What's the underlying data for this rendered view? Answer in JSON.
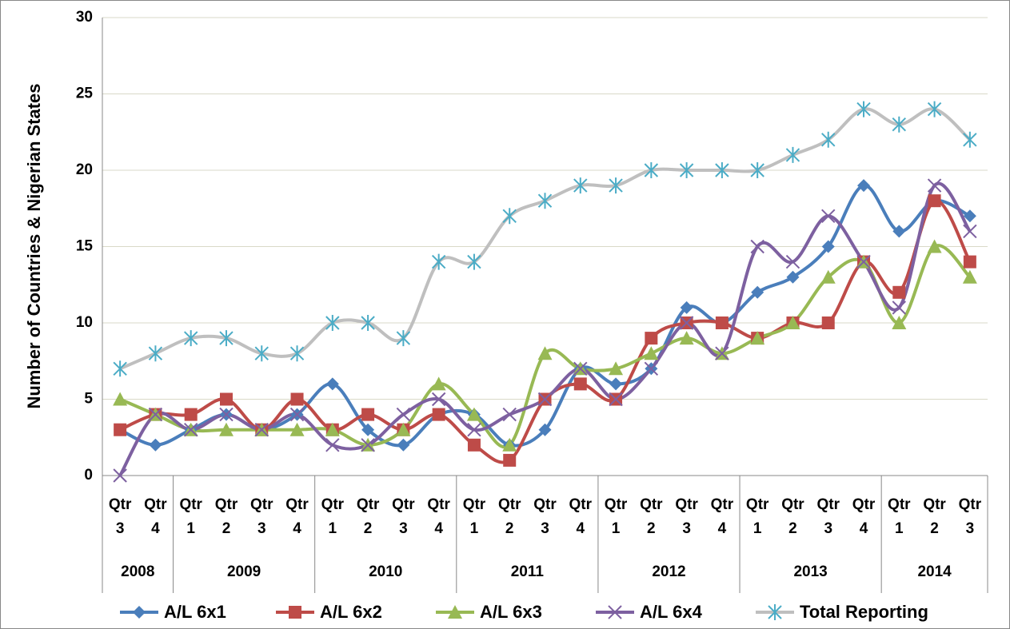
{
  "chart_data": {
    "type": "line",
    "y_axis_label": "Number of Countries & Nigerian States",
    "groups": [
      {
        "name": "2008",
        "categories": [
          "Qtr 3",
          "Qtr 4"
        ]
      },
      {
        "name": "2009",
        "categories": [
          "Qtr 1",
          "Qtr 2",
          "Qtr 3",
          "Qtr 4"
        ]
      },
      {
        "name": "2010",
        "categories": [
          "Qtr 1",
          "Qtr 2",
          "Qtr 3",
          "Qtr 4"
        ]
      },
      {
        "name": "2011",
        "categories": [
          "Qtr 1",
          "Qtr 2",
          "Qtr 3",
          "Qtr 4"
        ]
      },
      {
        "name": "2012",
        "categories": [
          "Qtr 1",
          "Qtr 2",
          "Qtr 3",
          "Qtr 4"
        ]
      },
      {
        "name": "2013",
        "categories": [
          "Qtr 1",
          "Qtr 2",
          "Qtr 3",
          "Qtr 4"
        ]
      },
      {
        "name": "2014",
        "categories": [
          "Qtr 1",
          "Qtr 2",
          "Qtr 3"
        ]
      }
    ],
    "series": [
      {
        "name": "A/L 6x1",
        "color": "#4a7ebb",
        "marker": "diamond",
        "values": [
          3,
          2,
          3,
          4,
          3,
          4,
          6,
          3,
          2,
          4,
          4,
          2,
          3,
          7,
          6,
          7,
          11,
          10,
          12,
          13,
          15,
          19,
          16,
          18,
          17
        ]
      },
      {
        "name": "A/L 6x2",
        "color": "#be4b48",
        "marker": "square",
        "values": [
          3,
          4,
          4,
          5,
          3,
          5,
          3,
          4,
          3,
          4,
          2,
          1,
          5,
          6,
          5,
          9,
          10,
          10,
          9,
          10,
          10,
          14,
          12,
          18,
          14
        ]
      },
      {
        "name": "A/L 6x3",
        "color": "#98b954",
        "marker": "triangle",
        "values": [
          5,
          4,
          3,
          3,
          3,
          3,
          3,
          2,
          3,
          6,
          4,
          2,
          8,
          7,
          7,
          8,
          9,
          8,
          9,
          10,
          13,
          14,
          10,
          15,
          13
        ]
      },
      {
        "name": "A/L 6x4",
        "color": "#7d60a0",
        "marker": "x",
        "values": [
          0,
          4,
          3,
          4,
          3,
          4,
          2,
          2,
          4,
          5,
          3,
          4,
          5,
          7,
          5,
          7,
          10,
          8,
          15,
          14,
          17,
          14,
          11,
          19,
          16
        ]
      },
      {
        "name": "Total Reporting",
        "color": "#bfbfbf",
        "marker_color": "#4bacc6",
        "marker": "star",
        "values": [
          7,
          8,
          9,
          9,
          8,
          8,
          10,
          10,
          9,
          14,
          14,
          17,
          18,
          19,
          19,
          20,
          20,
          20,
          20,
          21,
          22,
          24,
          23,
          24,
          22
        ]
      }
    ],
    "ylim": [
      0,
      30
    ],
    "yticks": [
      0,
      5,
      10,
      15,
      20,
      25,
      30
    ],
    "grid": true,
    "smooth": true,
    "legend": "bottom"
  }
}
